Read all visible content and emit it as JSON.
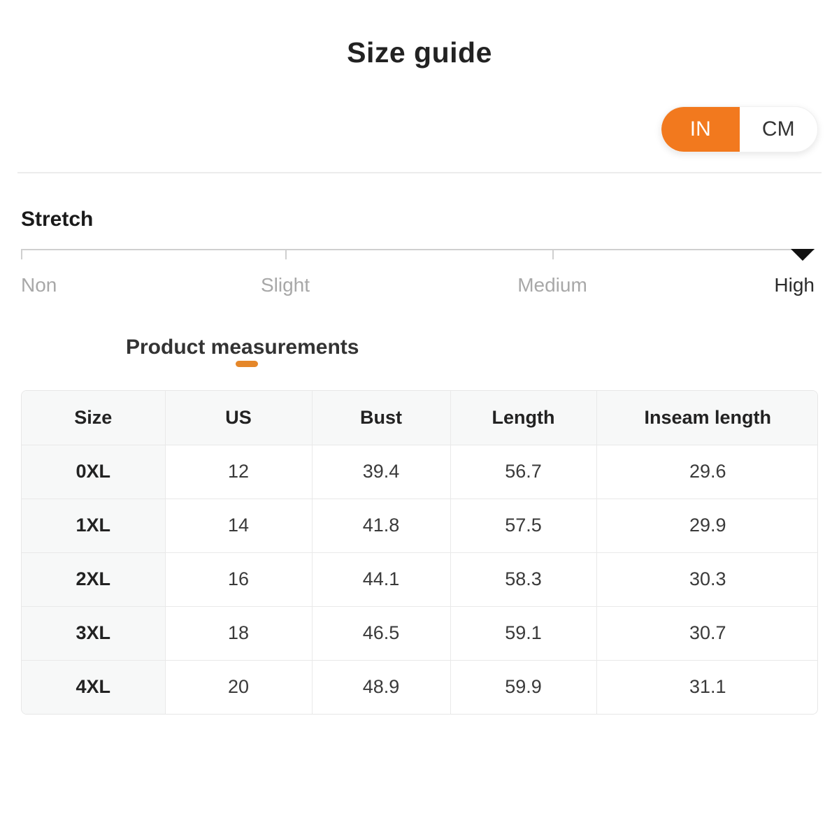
{
  "page": {
    "title": "Size guide"
  },
  "unit_toggle": {
    "selected": "IN",
    "options": [
      {
        "label": "IN",
        "selected": true
      },
      {
        "label": "CM",
        "selected": false
      }
    ]
  },
  "stretch": {
    "label": "Stretch",
    "levels": [
      "Non",
      "Slight",
      "Medium",
      "High"
    ],
    "selected_level": "High"
  },
  "measurements": {
    "heading": "Product measurements",
    "unit": "IN",
    "table": {
      "columns": [
        "Size",
        "US",
        "Bust",
        "Length",
        "Inseam length"
      ],
      "rows": [
        [
          "0XL",
          "12",
          "39.4",
          "56.7",
          "29.6"
        ],
        [
          "1XL",
          "14",
          "41.8",
          "57.5",
          "29.9"
        ],
        [
          "2XL",
          "16",
          "44.1",
          "58.3",
          "30.3"
        ],
        [
          "3XL",
          "18",
          "46.5",
          "59.1",
          "30.7"
        ],
        [
          "4XL",
          "20",
          "48.9",
          "59.9",
          "31.1"
        ]
      ]
    }
  },
  "colors": {
    "accent_orange": "#F2791E",
    "heading_underline": "#E5872A",
    "indicator_black": "#111111",
    "scale_gray": "#CFCFCF",
    "table_header_bg": "#F7F8F8"
  }
}
